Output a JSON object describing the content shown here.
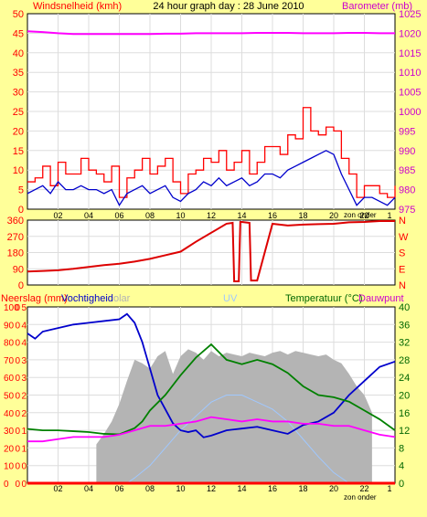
{
  "colors": {
    "background": "#ffff99",
    "plot_bg": "#ffffff",
    "grid": "#dddddd",
    "wind_gust": "#ff0000",
    "wind_avg": "#0000cc",
    "barometer": "#ff00ff",
    "direction": "#dd0000",
    "solar": "#b4b4b4",
    "uv": "#a0c8ff",
    "humidity": "#0000cc",
    "temperature": "#008000",
    "dewpoint": "#ff00ff",
    "rain": "#ff0000",
    "left_axis": "#ff0000",
    "right_axis": "#cc00cc",
    "dir_axis": "#ff0000",
    "temp_axis": "#006600"
  },
  "chart_data": [
    {
      "type": "line",
      "title": "24 hour graph day : 28 June 2010",
      "left_label": "Windsnelheid (kmh)",
      "right_label": "Barometer (mb)",
      "left_ticks": [
        "0",
        "5",
        "10",
        "15",
        "20",
        "25",
        "30",
        "35",
        "40",
        "45",
        "50"
      ],
      "right_ticks": [
        "975",
        "980",
        "985",
        "990",
        "995",
        "1000",
        "1005",
        "1010",
        "1015",
        "1020",
        "1025"
      ],
      "ylim_left": [
        0,
        50
      ],
      "ylim_right": [
        975,
        1025
      ],
      "x_ticks": [
        "02",
        "04",
        "06",
        "08",
        "10",
        "12",
        "14",
        "16",
        "18",
        "20",
        "22",
        "1"
      ],
      "x_note": "zon onder",
      "xlim": [
        0,
        24
      ],
      "series": [
        {
          "key": "barometer",
          "axis": "right",
          "x": [
            0,
            1,
            2,
            3,
            4,
            5,
            6,
            7,
            8,
            9,
            10,
            11,
            12,
            13,
            14,
            15,
            16,
            17,
            18,
            19,
            20,
            21,
            22,
            23,
            24
          ],
          "y": [
            1020.5,
            1020.3,
            1020,
            1019.8,
            1019.8,
            1019.8,
            1019.8,
            1019.8,
            1019.8,
            1019.9,
            1019.9,
            1020,
            1020,
            1020,
            1020,
            1020.1,
            1020.1,
            1020.1,
            1020,
            1020,
            1020,
            1020.1,
            1020.1,
            1020,
            1020
          ]
        },
        {
          "key": "wind_gust",
          "axis": "left",
          "x": [
            0,
            0.5,
            1,
            1.5,
            2,
            2.5,
            3,
            3.5,
            4,
            4.5,
            5,
            5.5,
            6,
            6.5,
            7,
            7.5,
            8,
            8.5,
            9,
            9.5,
            10,
            10.5,
            11,
            11.5,
            12,
            12.5,
            13,
            13.5,
            14,
            14.5,
            15,
            15.5,
            16,
            16.5,
            17,
            17.5,
            18,
            18.5,
            19,
            19.5,
            20,
            20.5,
            21,
            21.5,
            22,
            22.5,
            23,
            23.5,
            24
          ],
          "y": [
            7,
            8,
            11,
            6,
            12,
            9,
            9,
            13,
            10,
            9,
            7,
            11,
            3,
            8,
            10,
            13,
            9,
            11,
            13,
            7,
            4,
            9,
            10,
            13,
            12,
            15,
            10,
            12,
            15,
            9,
            12,
            16,
            16,
            14,
            19,
            18,
            26,
            20,
            19,
            21,
            20,
            13,
            9,
            3,
            6,
            6,
            4,
            3,
            6
          ]
        },
        {
          "key": "wind_avg",
          "axis": "left",
          "x": [
            0,
            0.5,
            1,
            1.5,
            2,
            2.5,
            3,
            3.5,
            4,
            4.5,
            5,
            5.5,
            6,
            6.5,
            7,
            7.5,
            8,
            8.5,
            9,
            9.5,
            10,
            10.5,
            11,
            11.5,
            12,
            12.5,
            13,
            13.5,
            14,
            14.5,
            15,
            15.5,
            16,
            16.5,
            17,
            17.5,
            18,
            18.5,
            19,
            19.5,
            20,
            20.5,
            21,
            21.5,
            22,
            22.5,
            23,
            23.5,
            24
          ],
          "y": [
            4,
            5,
            6,
            4,
            7,
            5,
            5,
            6,
            5,
            5,
            4,
            5,
            1,
            4,
            5,
            6,
            4,
            5,
            6,
            3,
            2,
            4,
            5,
            7,
            6,
            8,
            6,
            7,
            8,
            6,
            7,
            9,
            9,
            8,
            10,
            11,
            12,
            13,
            14,
            15,
            14,
            9,
            5,
            1,
            3,
            3,
            2,
            1,
            3
          ]
        }
      ]
    },
    {
      "type": "line",
      "left_ticks": [
        "0",
        "90",
        "180",
        "270",
        "360"
      ],
      "right_ticks": [
        "N",
        "E",
        "S",
        "W",
        "N"
      ],
      "ylim": [
        0,
        360
      ],
      "xlim": [
        0,
        24
      ],
      "series": [
        {
          "key": "direction",
          "x": [
            0,
            1,
            2,
            3,
            4,
            5,
            6,
            7,
            8,
            9,
            10,
            11,
            12,
            13,
            13.4,
            13.5,
            13.8,
            13.9,
            14,
            14.5,
            14.6,
            15,
            16,
            17,
            18,
            19,
            20,
            21,
            22,
            23,
            24
          ],
          "y": [
            75,
            78,
            82,
            90,
            100,
            110,
            118,
            130,
            145,
            165,
            185,
            240,
            290,
            340,
            345,
            20,
            20,
            350,
            350,
            345,
            25,
            25,
            340,
            330,
            335,
            338,
            340,
            348,
            350,
            355,
            355
          ]
        }
      ]
    },
    {
      "type": "area",
      "left_label": "Neerslag (mm)",
      "left_label2": "Vochtigheid",
      "left_label3": "olar",
      "center_label": "UV",
      "right_label": "Temperatuur (°C)",
      "right_label2": "Dauwpunt",
      "left_ticks": [
        "0",
        "10",
        "20",
        "30",
        "40",
        "50",
        "60",
        "70",
        "80",
        "90",
        "100"
      ],
      "left_ticks_outer": [
        "0",
        "0",
        "1",
        "1",
        "2",
        "2",
        "3",
        "3",
        "4",
        "4",
        "5"
      ],
      "mid_ticks": [
        "0",
        "0",
        "0",
        "0",
        "0",
        "0",
        "0",
        "0",
        "0",
        "0",
        "0"
      ],
      "right_ticks": [
        "0",
        "4",
        "8",
        "12",
        "16",
        "20",
        "24",
        "28",
        "32",
        "36",
        "40"
      ],
      "ylim": [
        0,
        100
      ],
      "ylim_temp": [
        0,
        40
      ],
      "xlim": [
        0,
        24
      ],
      "x_ticks": [
        "02",
        "04",
        "06",
        "08",
        "10",
        "12",
        "14",
        "16",
        "18",
        "20",
        "22",
        "1"
      ],
      "x_note": "zon onder",
      "series": [
        {
          "key": "solar",
          "x": [
            4.5,
            5,
            5.5,
            6,
            6.5,
            7,
            7.5,
            8,
            8.5,
            9,
            9.5,
            10,
            10.5,
            11,
            11.5,
            12,
            12.5,
            13,
            13.5,
            14,
            14.5,
            15,
            15.5,
            16,
            16.5,
            17,
            17.5,
            18,
            18.5,
            19,
            19.5,
            20,
            20.5,
            21,
            21.5,
            22,
            22.5
          ],
          "y": [
            22,
            28,
            35,
            45,
            58,
            70,
            68,
            65,
            72,
            75,
            62,
            72,
            76,
            74,
            70,
            75,
            72,
            74,
            73,
            72,
            74,
            73,
            72,
            74,
            75,
            73,
            75,
            74,
            73,
            72,
            73,
            70,
            68,
            62,
            55,
            50,
            40
          ]
        },
        {
          "key": "uv",
          "x": [
            6.5,
            7,
            8,
            9,
            10,
            11,
            12,
            13,
            14,
            15,
            16,
            17,
            18,
            19,
            20,
            21
          ],
          "y": [
            0,
            3,
            10,
            20,
            30,
            38,
            46,
            50,
            50,
            46,
            42,
            35,
            25,
            15,
            6,
            0
          ]
        },
        {
          "key": "humidity",
          "x": [
            0,
            0.5,
            1,
            2,
            3,
            4,
            5,
            6,
            6.5,
            7,
            7.5,
            8,
            8.5,
            9,
            9.5,
            10,
            10.5,
            11,
            11.5,
            12,
            13,
            14,
            15,
            16,
            17,
            18,
            19,
            20,
            21,
            22,
            23,
            24
          ],
          "y": [
            85,
            82,
            86,
            88,
            90,
            91,
            92,
            93,
            96,
            91,
            80,
            65,
            50,
            42,
            34,
            30,
            29,
            30,
            26,
            27,
            30,
            31,
            32,
            30,
            28,
            33,
            35,
            40,
            50,
            58,
            66,
            69
          ]
        },
        {
          "key": "temperature",
          "x": [
            0,
            1,
            2,
            3,
            4,
            5,
            6,
            7,
            7.5,
            8,
            9,
            10,
            11,
            12,
            13,
            14,
            15,
            16,
            17,
            18,
            19,
            20,
            21,
            22,
            23,
            24
          ],
          "y": [
            12.3,
            12,
            12,
            11.8,
            11.6,
            11.2,
            11.1,
            12.5,
            14,
            16.5,
            20,
            24.5,
            28.5,
            31.5,
            28,
            27,
            28,
            27,
            25,
            22,
            20,
            19.5,
            18.5,
            16.5,
            14.5,
            12
          ]
        },
        {
          "key": "dewpoint",
          "x": [
            0,
            1,
            2,
            3,
            4,
            5,
            6,
            7,
            8,
            9,
            10,
            11,
            12,
            13,
            14,
            15,
            16,
            17,
            18,
            19,
            20,
            21,
            22,
            23,
            24
          ],
          "y": [
            9.5,
            9.5,
            10,
            10.5,
            10.5,
            10.5,
            11,
            12,
            13,
            13,
            13.5,
            14,
            15,
            14.5,
            14,
            14.5,
            14,
            14,
            13.5,
            13.5,
            13,
            13,
            12,
            11,
            10.5
          ]
        },
        {
          "key": "rain",
          "x": [
            0,
            24
          ],
          "y": [
            0,
            0
          ]
        }
      ]
    }
  ]
}
